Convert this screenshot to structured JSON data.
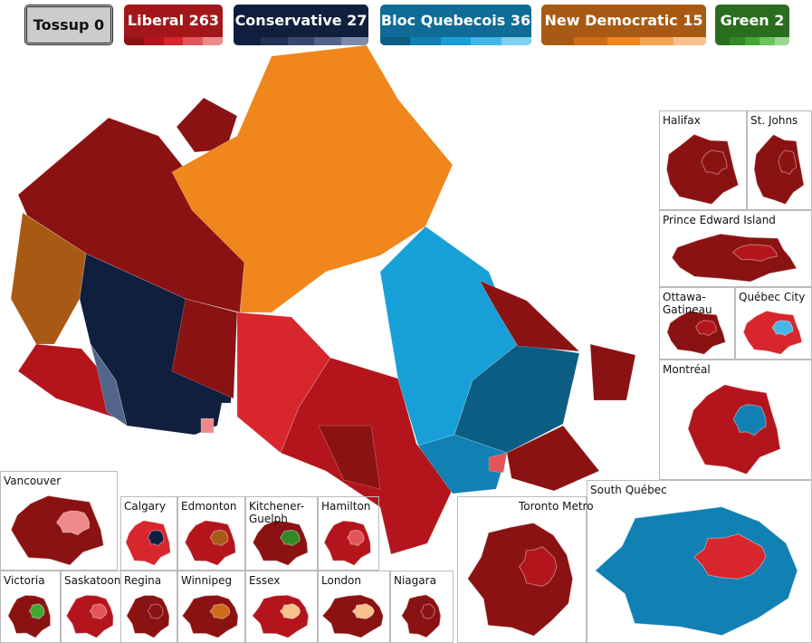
{
  "legend": [
    {
      "name": "Tossup",
      "seats": 0,
      "color": "#cccccc",
      "shades": []
    },
    {
      "name": "Liberal",
      "seats": 263,
      "color": "#a3171b",
      "shades": [
        "#8b1212",
        "#b4151c",
        "#d7262c",
        "#e4555a",
        "#ef8a8c"
      ]
    },
    {
      "name": "Conservative",
      "seats": 27,
      "color": "#0f1f3d",
      "shades": [
        "#0f1f3d",
        "#1e3257",
        "#35496e",
        "#51658a",
        "#7d8ba6"
      ]
    },
    {
      "name": "Bloc Quebecois",
      "seats": 36,
      "color": "#0e6c97",
      "shades": [
        "#0b5d84",
        "#1180b3",
        "#179fd8",
        "#41b8e8",
        "#7fd0f0"
      ]
    },
    {
      "name": "New Democratic",
      "seats": 15,
      "color": "#a85a14",
      "shades": [
        "#a85a14",
        "#cf6d16",
        "#f0861c",
        "#f5a24f",
        "#f8c18d"
      ]
    },
    {
      "name": "Green",
      "seats": 2,
      "color": "#2a6d1f",
      "shades": [
        "#2a6d1f",
        "#338a25",
        "#41a832",
        "#6cc25c",
        "#9bd98e"
      ]
    }
  ],
  "insets": [
    {
      "label": "Halifax"
    },
    {
      "label": "St. Johns"
    },
    {
      "label": "Prince Edward Island"
    },
    {
      "label": "Ottawa-Gatineau"
    },
    {
      "label": "Québec City"
    },
    {
      "label": "Montréal"
    },
    {
      "label": "Vancouver"
    },
    {
      "label": "Calgary"
    },
    {
      "label": "Edmonton"
    },
    {
      "label": "Kitchener-Guelph"
    },
    {
      "label": "Hamilton"
    },
    {
      "label": "Victoria"
    },
    {
      "label": "Saskatoon"
    },
    {
      "label": "Regina"
    },
    {
      "label": "Winnipeg"
    },
    {
      "label": "Essex"
    },
    {
      "label": "London"
    },
    {
      "label": "Niagara"
    },
    {
      "label": "Toronto Metro"
    },
    {
      "label": "South Québec"
    }
  ]
}
